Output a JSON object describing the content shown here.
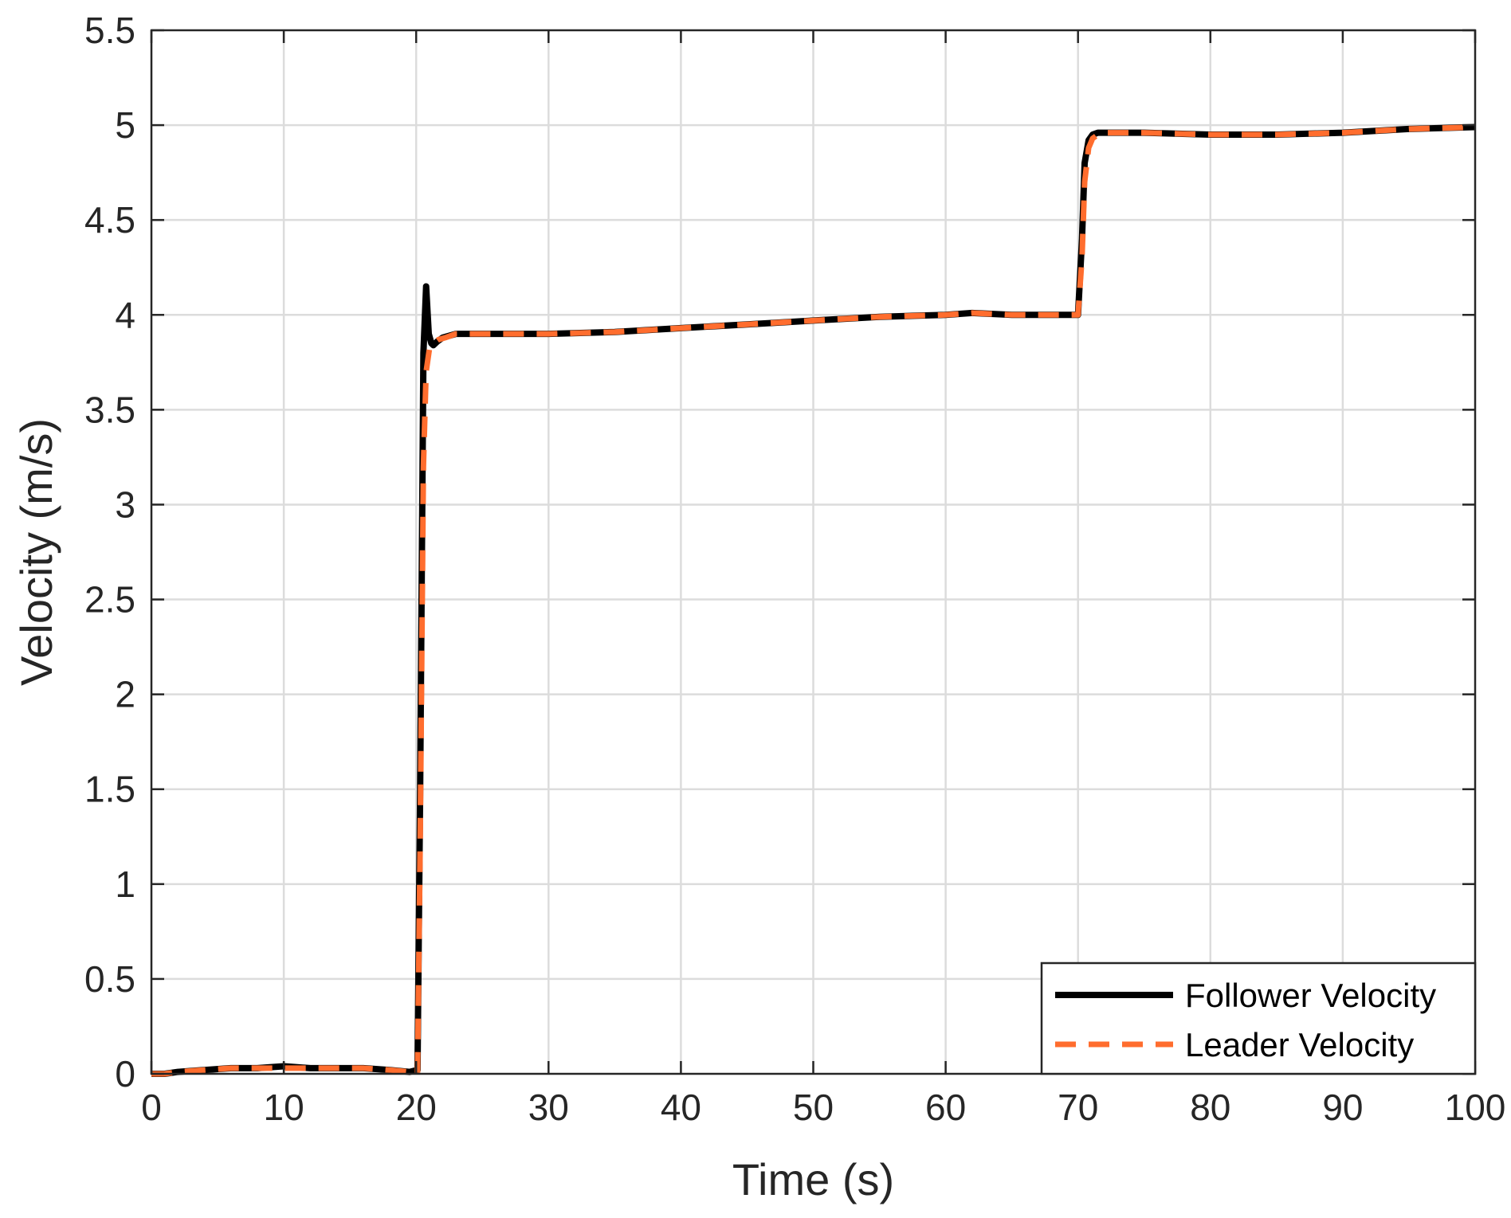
{
  "chart_data": {
    "type": "line",
    "title": "",
    "xlabel": "Time (s)",
    "ylabel": "Velocity (m/s)",
    "xlim": [
      0,
      100
    ],
    "ylim": [
      0,
      5.5
    ],
    "xticks": [
      0,
      10,
      20,
      30,
      40,
      50,
      60,
      70,
      80,
      90,
      100
    ],
    "yticks": [
      0,
      0.5,
      1,
      1.5,
      2,
      2.5,
      3,
      3.5,
      4,
      4.5,
      5,
      5.5
    ],
    "xtick_labels": [
      "0",
      "10",
      "20",
      "30",
      "40",
      "50",
      "60",
      "70",
      "80",
      "90",
      "100"
    ],
    "ytick_labels": [
      "0",
      "0.5",
      "1",
      "1.5",
      "2",
      "2.5",
      "3",
      "3.5",
      "4",
      "4.5",
      "5",
      "5.5"
    ],
    "grid": true,
    "box": true,
    "legend_position": "bottom-right",
    "series": [
      {
        "name": "Follower Velocity",
        "color": "#000000",
        "line_style": "solid",
        "x": [
          0,
          1,
          2,
          4,
          6,
          8,
          10,
          12,
          14,
          16,
          18,
          19.5,
          20.1,
          20.3,
          20.55,
          20.75,
          20.95,
          21.15,
          21.3,
          21.6,
          22,
          22.5,
          23,
          25,
          30,
          35,
          40,
          45,
          50,
          55,
          60,
          62,
          65,
          68,
          69.8,
          70.0,
          70.3,
          70.5,
          70.8,
          71.1,
          71.5,
          72,
          75,
          80,
          85,
          90,
          95,
          100
        ],
        "y": [
          0,
          0.0,
          0.01,
          0.02,
          0.03,
          0.03,
          0.04,
          0.03,
          0.03,
          0.03,
          0.02,
          0.01,
          0.02,
          1.5,
          3.8,
          4.15,
          3.9,
          3.85,
          3.84,
          3.86,
          3.88,
          3.89,
          3.9,
          3.9,
          3.9,
          3.91,
          3.93,
          3.95,
          3.97,
          3.99,
          4.0,
          4.01,
          4.0,
          4.0,
          4.0,
          4.0,
          4.4,
          4.8,
          4.92,
          4.95,
          4.96,
          4.96,
          4.96,
          4.95,
          4.95,
          4.96,
          4.98,
          4.99
        ]
      },
      {
        "name": "Leader Velocity",
        "color": "#ff6d2e",
        "line_style": "dashed",
        "x": [
          0,
          1,
          2,
          4,
          6,
          8,
          10,
          12,
          14,
          16,
          18,
          19.5,
          20.1,
          20.3,
          20.55,
          20.75,
          21.0,
          21.3,
          21.7,
          22.2,
          23,
          25,
          30,
          35,
          40,
          45,
          50,
          55,
          60,
          62,
          65,
          68,
          69.8,
          70.0,
          70.3,
          70.5,
          70.8,
          71.1,
          71.5,
          72,
          75,
          80,
          85,
          90,
          95,
          100
        ],
        "y": [
          0,
          0.0,
          0.01,
          0.02,
          0.03,
          0.03,
          0.03,
          0.03,
          0.03,
          0.03,
          0.02,
          0.01,
          0.0,
          1.2,
          3.2,
          3.7,
          3.82,
          3.85,
          3.87,
          3.88,
          3.9,
          3.9,
          3.9,
          3.91,
          3.93,
          3.95,
          3.97,
          3.99,
          4.0,
          4.01,
          4.0,
          4.0,
          4.0,
          4.0,
          4.3,
          4.7,
          4.88,
          4.93,
          4.95,
          4.96,
          4.96,
          4.95,
          4.95,
          4.96,
          4.98,
          4.99
        ]
      }
    ]
  }
}
